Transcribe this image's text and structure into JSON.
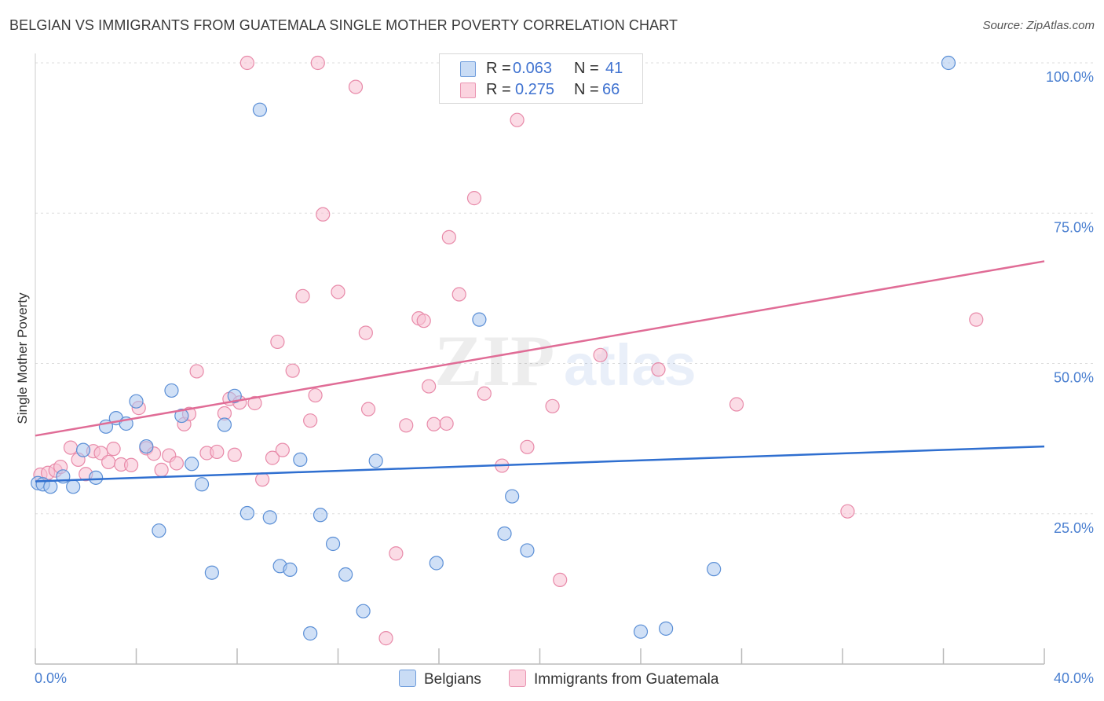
{
  "title": "BELGIAN VS IMMIGRANTS FROM GUATEMALA SINGLE MOTHER POVERTY CORRELATION CHART",
  "source": "Source: ZipAtlas.com",
  "watermark": {
    "zip": "ZIP",
    "atlas": "atlas"
  },
  "colors": {
    "belgian_fill": "#a9c6ee",
    "belgian_stroke": "#5b8fd6",
    "belgian_line": "#2f6fd0",
    "guatemala_fill": "#f7bfd1",
    "guatemala_stroke": "#e88aa9",
    "guatemala_line": "#e06c96",
    "tick_label": "#4a7fd0",
    "grid": "#dddddd"
  },
  "legend": {
    "rows": [
      {
        "r_label": "R =",
        "r_value": "0.063",
        "n_label": "N =",
        "n_value": "41"
      },
      {
        "r_label": "R =",
        "r_value": "0.275",
        "n_label": "N =",
        "n_value": "66"
      }
    ]
  },
  "bottom_legend": {
    "belgians": "Belgians",
    "guatemala": "Immigrants from Guatemala"
  },
  "chart_data": {
    "type": "scatter",
    "title": "BELGIAN VS IMMIGRANTS FROM GUATEMALA SINGLE MOTHER POVERTY CORRELATION CHART",
    "xlabel": "",
    "ylabel": "Single Mother Poverty",
    "xlim": [
      0,
      40
    ],
    "ylim": [
      0,
      100
    ],
    "x_tick_labels": [
      "0.0%",
      "40.0%"
    ],
    "y_tick_values": [
      25,
      50,
      75,
      100
    ],
    "y_tick_labels": [
      "25.0%",
      "50.0%",
      "75.0%",
      "100.0%"
    ],
    "grid": true,
    "legend_position": "top-center",
    "series": [
      {
        "name": "Belgians",
        "stats": {
          "R": 0.063,
          "N": 41
        },
        "trend": {
          "x": [
            0,
            40
          ],
          "y": [
            30.4,
            36.2
          ]
        },
        "points": [
          [
            0.1,
            30.1
          ],
          [
            0.3,
            29.9
          ],
          [
            0.6,
            29.5
          ],
          [
            1.1,
            31.2
          ],
          [
            1.5,
            29.5
          ],
          [
            1.9,
            35.6
          ],
          [
            2.4,
            31.0
          ],
          [
            2.8,
            39.5
          ],
          [
            3.2,
            40.9
          ],
          [
            3.6,
            40.0
          ],
          [
            4.0,
            43.7
          ],
          [
            4.4,
            36.2
          ],
          [
            4.9,
            22.2
          ],
          [
            5.4,
            45.5
          ],
          [
            5.8,
            41.3
          ],
          [
            6.2,
            33.3
          ],
          [
            6.6,
            29.9
          ],
          [
            7.0,
            15.2
          ],
          [
            7.5,
            39.8
          ],
          [
            7.9,
            44.6
          ],
          [
            8.4,
            25.1
          ],
          [
            8.9,
            92.2
          ],
          [
            9.3,
            24.4
          ],
          [
            9.7,
            16.3
          ],
          [
            10.1,
            15.7
          ],
          [
            10.5,
            34.0
          ],
          [
            10.9,
            5.1
          ],
          [
            11.3,
            24.8
          ],
          [
            11.8,
            20.0
          ],
          [
            12.3,
            14.9
          ],
          [
            13.0,
            8.8
          ],
          [
            13.5,
            33.8
          ],
          [
            15.9,
            16.8
          ],
          [
            18.6,
            21.7
          ],
          [
            18.9,
            27.9
          ],
          [
            19.5,
            18.9
          ],
          [
            17.6,
            57.3
          ],
          [
            24.0,
            5.4
          ],
          [
            25.0,
            5.9
          ],
          [
            26.9,
            15.8
          ],
          [
            36.2,
            100.0
          ]
        ]
      },
      {
        "name": "Immigrants from Guatemala",
        "stats": {
          "R": 0.275,
          "N": 66
        },
        "trend": {
          "x": [
            0,
            40
          ],
          "y": [
            38.0,
            67.0
          ]
        },
        "points": [
          [
            0.2,
            31.5
          ],
          [
            0.5,
            31.8
          ],
          [
            0.8,
            32.2
          ],
          [
            1.0,
            32.8
          ],
          [
            1.4,
            36.0
          ],
          [
            1.7,
            34.0
          ],
          [
            2.0,
            31.6
          ],
          [
            2.3,
            35.4
          ],
          [
            2.6,
            35.1
          ],
          [
            2.9,
            33.6
          ],
          [
            3.1,
            35.8
          ],
          [
            3.4,
            33.2
          ],
          [
            3.8,
            33.1
          ],
          [
            4.1,
            42.6
          ],
          [
            4.4,
            35.9
          ],
          [
            4.7,
            35.0
          ],
          [
            5.0,
            32.3
          ],
          [
            5.3,
            34.7
          ],
          [
            5.6,
            33.4
          ],
          [
            5.9,
            39.9
          ],
          [
            6.1,
            41.6
          ],
          [
            6.4,
            48.7
          ],
          [
            6.8,
            35.1
          ],
          [
            7.2,
            35.3
          ],
          [
            7.5,
            41.7
          ],
          [
            7.7,
            44.1
          ],
          [
            7.9,
            34.8
          ],
          [
            8.1,
            43.5
          ],
          [
            8.4,
            100.0
          ],
          [
            8.7,
            43.4
          ],
          [
            9.0,
            30.7
          ],
          [
            9.4,
            34.3
          ],
          [
            9.6,
            53.6
          ],
          [
            9.8,
            35.6
          ],
          [
            10.2,
            48.8
          ],
          [
            10.6,
            61.2
          ],
          [
            10.9,
            40.5
          ],
          [
            11.1,
            44.7
          ],
          [
            11.2,
            100.0
          ],
          [
            11.4,
            74.8
          ],
          [
            12.0,
            61.9
          ],
          [
            12.7,
            96.0
          ],
          [
            13.1,
            55.1
          ],
          [
            13.2,
            42.4
          ],
          [
            14.3,
            18.4
          ],
          [
            13.9,
            4.3
          ],
          [
            14.7,
            39.7
          ],
          [
            15.2,
            57.5
          ],
          [
            15.4,
            57.1
          ],
          [
            15.6,
            46.2
          ],
          [
            15.8,
            39.9
          ],
          [
            16.3,
            40.0
          ],
          [
            16.4,
            71.0
          ],
          [
            16.8,
            61.5
          ],
          [
            17.4,
            77.5
          ],
          [
            17.8,
            45.0
          ],
          [
            18.5,
            33.0
          ],
          [
            19.1,
            90.5
          ],
          [
            19.5,
            36.1
          ],
          [
            20.5,
            42.9
          ],
          [
            20.8,
            14.0
          ],
          [
            22.4,
            51.4
          ],
          [
            24.7,
            49.0
          ],
          [
            27.8,
            43.2
          ],
          [
            32.2,
            25.4
          ],
          [
            37.3,
            57.3
          ]
        ]
      }
    ]
  }
}
